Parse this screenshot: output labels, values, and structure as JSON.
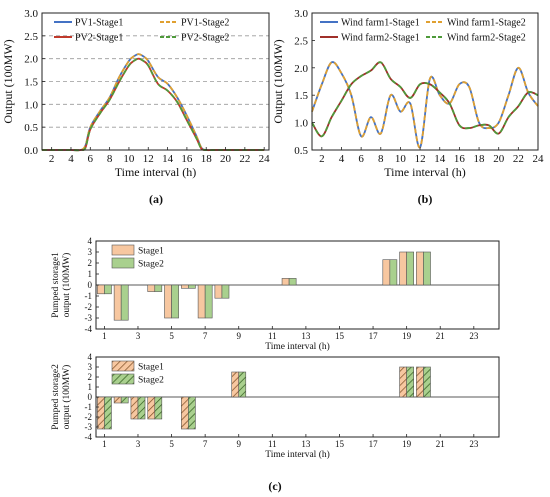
{
  "chart_data": [
    {
      "id": "a",
      "caption": "(a)",
      "type": "line",
      "xlabel": "Time interval (h)",
      "ylabel": "Output (100MW)",
      "xlim": [
        1,
        24.5
      ],
      "ylim": [
        0,
        3.0
      ],
      "xticks": [
        2,
        4,
        6,
        8,
        10,
        12,
        14,
        16,
        18,
        20,
        22,
        24
      ],
      "yticks": [
        0.0,
        0.5,
        1.0,
        1.5,
        2.0,
        2.5,
        3.0
      ],
      "grid": "horizontal dashed",
      "legend_position": "top",
      "x": [
        1,
        2,
        3,
        4,
        5,
        5.5,
        6,
        7,
        8,
        9,
        10,
        10.5,
        11,
        11.5,
        12,
        13,
        14,
        15,
        16,
        17,
        17.5,
        18,
        19,
        20,
        21,
        22,
        23,
        24
      ],
      "series": [
        {
          "name": "PV1-Stage1",
          "color": "#4472c4",
          "dash": "solid",
          "values": [
            0,
            0,
            0,
            0,
            0,
            0.1,
            0.5,
            0.85,
            1.15,
            1.6,
            1.95,
            2.05,
            2.1,
            2.05,
            1.95,
            1.6,
            1.45,
            1.15,
            0.75,
            0.3,
            0.05,
            0,
            0,
            0,
            0,
            0,
            0,
            0
          ]
        },
        {
          "name": "PV1-Stage2",
          "color": "#e0a030",
          "dash": "dashed",
          "values": [
            0,
            0,
            0,
            0,
            0,
            0.1,
            0.5,
            0.85,
            1.15,
            1.6,
            1.95,
            2.05,
            2.1,
            2.05,
            1.95,
            1.6,
            1.45,
            1.15,
            0.75,
            0.3,
            0.05,
            0,
            0,
            0,
            0,
            0,
            0,
            0
          ]
        },
        {
          "name": "PV2-Stage1",
          "color": "#c0392b",
          "dash": "solid",
          "values": [
            0,
            0,
            0,
            0,
            0,
            0.05,
            0.45,
            0.8,
            1.1,
            1.5,
            1.85,
            1.95,
            2.0,
            1.95,
            1.85,
            1.45,
            1.3,
            1.05,
            0.65,
            0.25,
            0.03,
            0,
            0,
            0,
            0,
            0,
            0,
            0
          ]
        },
        {
          "name": "PV2-Stage2",
          "color": "#4e9a3a",
          "dash": "dashed",
          "values": [
            0,
            0,
            0,
            0,
            0,
            0.05,
            0.45,
            0.8,
            1.1,
            1.5,
            1.85,
            1.95,
            2.0,
            1.95,
            1.85,
            1.45,
            1.3,
            1.05,
            0.65,
            0.25,
            0.03,
            0,
            0,
            0,
            0,
            0,
            0,
            0
          ]
        }
      ]
    },
    {
      "id": "b",
      "caption": "(b)",
      "type": "line",
      "xlabel": "Time interval (h)",
      "ylabel": "Output (100MW)",
      "xlim": [
        1,
        24
      ],
      "ylim": [
        0.5,
        3.0
      ],
      "xticks": [
        2,
        4,
        6,
        8,
        10,
        12,
        14,
        16,
        18,
        20,
        22,
        24
      ],
      "yticks": [
        0.5,
        1.0,
        1.5,
        2.0,
        2.5,
        3.0
      ],
      "grid": "none",
      "legend_position": "top",
      "x": [
        1,
        2,
        3,
        4,
        5,
        6,
        7,
        8,
        9,
        10,
        11,
        12,
        13,
        14,
        15,
        16,
        17,
        18,
        19,
        20,
        21,
        22,
        23,
        24
      ],
      "series": [
        {
          "name": "Wind farm1-Stage1",
          "color": "#4472c4",
          "dash": "solid",
          "values": [
            1.2,
            1.7,
            2.1,
            1.9,
            1.5,
            0.75,
            1.1,
            0.8,
            1.5,
            1.2,
            1.35,
            0.55,
            1.8,
            1.5,
            1.35,
            1.7,
            1.65,
            1.0,
            0.9,
            1.0,
            1.5,
            2.0,
            1.55,
            1.3
          ]
        },
        {
          "name": "Wind farm1-Stage2",
          "color": "#e0a030",
          "dash": "dashed",
          "values": [
            1.2,
            1.7,
            2.1,
            1.9,
            1.5,
            0.75,
            1.1,
            0.8,
            1.5,
            1.2,
            1.35,
            0.55,
            1.8,
            1.5,
            1.35,
            1.7,
            1.65,
            1.0,
            0.9,
            1.0,
            1.5,
            2.0,
            1.55,
            1.3
          ]
        },
        {
          "name": "Wind farm2-Stage1",
          "color": "#a0302a",
          "dash": "solid",
          "values": [
            1.0,
            0.75,
            1.1,
            1.4,
            1.7,
            1.85,
            1.95,
            2.1,
            1.8,
            1.65,
            1.45,
            1.7,
            1.7,
            1.55,
            1.35,
            0.95,
            0.9,
            0.95,
            0.95,
            0.8,
            1.1,
            1.3,
            1.55,
            1.5
          ]
        },
        {
          "name": "Wind farm2-Stage2",
          "color": "#4e9a3a",
          "dash": "dashed",
          "values": [
            1.0,
            0.75,
            1.1,
            1.4,
            1.7,
            1.85,
            1.95,
            2.1,
            1.8,
            1.65,
            1.45,
            1.7,
            1.7,
            1.55,
            1.35,
            0.95,
            0.9,
            0.95,
            0.95,
            0.8,
            1.1,
            1.3,
            1.55,
            1.5
          ]
        }
      ]
    },
    {
      "id": "c1",
      "caption": "(c)",
      "type": "bar",
      "xlabel": "Time interval (h)",
      "ylabel": "Pumped storage1 output (100MW)",
      "xlim": [
        0.5,
        24.5
      ],
      "ylim": [
        -4,
        4
      ],
      "xticks": [
        1,
        3,
        5,
        7,
        9,
        11,
        13,
        15,
        17,
        19,
        21,
        23
      ],
      "yticks": [
        -4,
        -3,
        -2,
        -1,
        0,
        1,
        2,
        3,
        4
      ],
      "grid": "none",
      "legend_position": "top-left",
      "categories": [
        1,
        2,
        3,
        4,
        5,
        6,
        7,
        8,
        9,
        10,
        11,
        12,
        13,
        14,
        15,
        16,
        17,
        18,
        19,
        20,
        21,
        22,
        23,
        24
      ],
      "series": [
        {
          "name": "Stage1",
          "color": "#f7c7a0",
          "values": [
            -0.8,
            -3.2,
            0,
            -0.6,
            -3.0,
            -0.3,
            -3.0,
            -1.2,
            0,
            0,
            0,
            0.6,
            0,
            0,
            0,
            0,
            0,
            2.3,
            3.0,
            3.0,
            0,
            0,
            0,
            0
          ]
        },
        {
          "name": "Stage2",
          "color": "#a9d08e",
          "values": [
            -0.8,
            -3.2,
            0,
            -0.6,
            -3.0,
            -0.3,
            -3.0,
            -1.2,
            0,
            0,
            0,
            0.6,
            0,
            0,
            0,
            0,
            0,
            2.3,
            3.0,
            3.0,
            0,
            0,
            0,
            0
          ]
        }
      ]
    },
    {
      "id": "c2",
      "type": "bar",
      "xlabel": "Time interval (h)",
      "ylabel": "Pumped storage2 output (100MW)",
      "xlim": [
        0.5,
        24.5
      ],
      "ylim": [
        -4,
        4
      ],
      "xticks": [
        1,
        3,
        5,
        7,
        9,
        11,
        13,
        15,
        17,
        19,
        21,
        23
      ],
      "yticks": [
        -4,
        -3,
        -2,
        -1,
        0,
        1,
        2,
        3,
        4
      ],
      "grid": "none",
      "legend_position": "top-left",
      "categories": [
        1,
        2,
        3,
        4,
        5,
        6,
        7,
        8,
        9,
        10,
        11,
        12,
        13,
        14,
        15,
        16,
        17,
        18,
        19,
        20,
        21,
        22,
        23,
        24
      ],
      "series": [
        {
          "name": "Stage1",
          "color": "#f7c7a0",
          "pattern": "hatched",
          "values": [
            -3.2,
            -0.6,
            -2.2,
            -2.2,
            0,
            -3.2,
            0,
            0,
            2.5,
            0,
            0,
            0,
            0,
            0,
            0,
            0,
            0,
            0,
            3.0,
            3.0,
            0,
            0,
            0,
            0
          ]
        },
        {
          "name": "Stage2",
          "color": "#a9d08e",
          "pattern": "hatched",
          "values": [
            -3.2,
            -0.6,
            -2.2,
            -2.2,
            0,
            -3.2,
            0,
            0,
            2.5,
            0,
            0,
            0,
            0,
            0,
            0,
            0,
            0,
            0,
            3.0,
            3.0,
            0,
            0,
            0,
            0
          ]
        }
      ]
    }
  ]
}
